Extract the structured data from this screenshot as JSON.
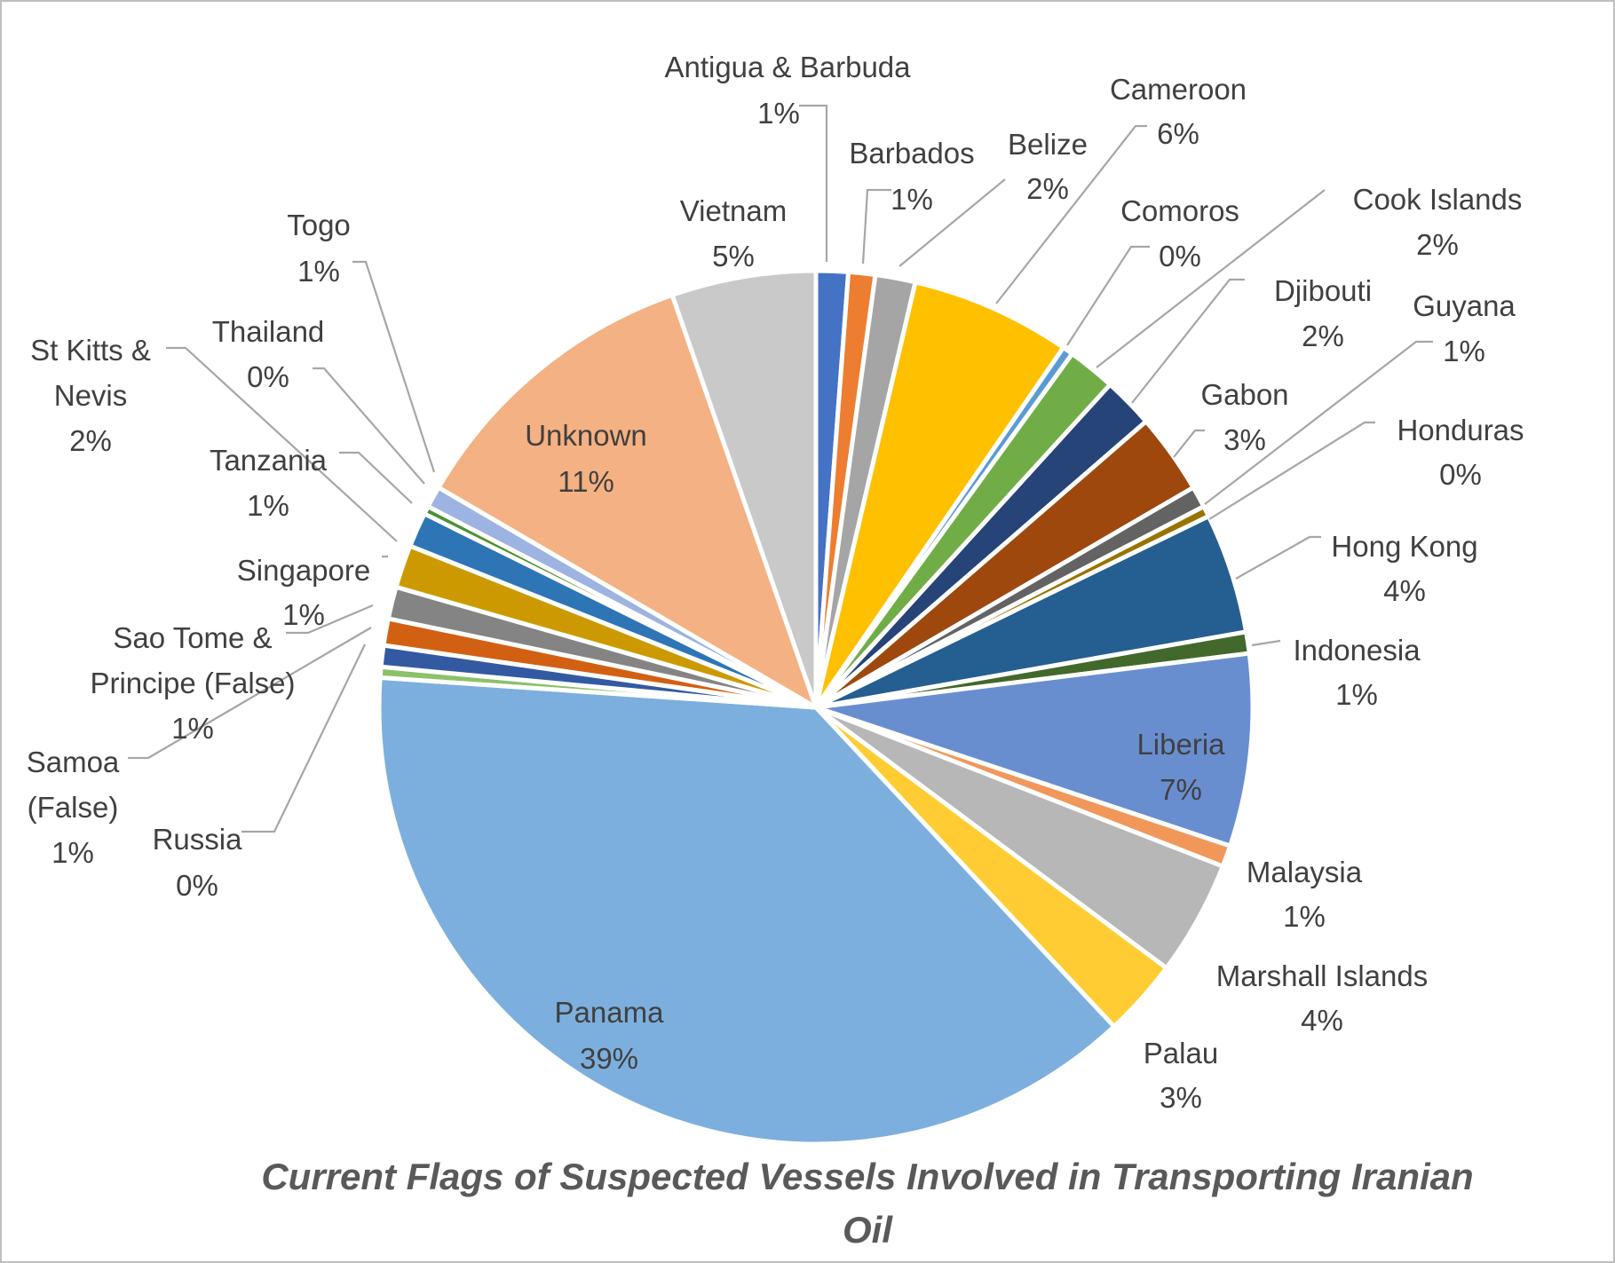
{
  "chart_data": {
    "type": "pie",
    "title": "Current Flags of  Suspected Vessels Involved in Transporting Iranian Oil",
    "slices": [
      {
        "name": "Antigua & Barbuda",
        "label": "1%",
        "value": 1.2,
        "color": "#4472C4"
      },
      {
        "name": "Barbados",
        "label": "1%",
        "value": 1.0,
        "color": "#ED7D31"
      },
      {
        "name": "Belize",
        "label": "2%",
        "value": 1.5,
        "color": "#A5A5A5"
      },
      {
        "name": "Cameroon",
        "label": "6%",
        "value": 6.0,
        "color": "#FFC000"
      },
      {
        "name": "Comoros",
        "label": "0%",
        "value": 0.4,
        "color": "#5B9BD5"
      },
      {
        "name": "Cook Islands",
        "label": "2%",
        "value": 1.8,
        "color": "#70AD47"
      },
      {
        "name": "Djibouti",
        "label": "2%",
        "value": 1.9,
        "color": "#264478"
      },
      {
        "name": "Gabon",
        "label": "3%",
        "value": 3.0,
        "color": "#9E480E"
      },
      {
        "name": "Guyana",
        "label": "1%",
        "value": 0.8,
        "color": "#636363"
      },
      {
        "name": "Honduras",
        "label": "0%",
        "value": 0.4,
        "color": "#997300"
      },
      {
        "name": "Hong Kong",
        "label": "4%",
        "value": 4.5,
        "color": "#255E91"
      },
      {
        "name": "Indonesia",
        "label": "1%",
        "value": 0.8,
        "color": "#43682B"
      },
      {
        "name": "Liberia",
        "label": "7%",
        "value": 7.2,
        "color": "#698ED0"
      },
      {
        "name": "Malaysia",
        "label": "1%",
        "value": 0.8,
        "color": "#F1975A"
      },
      {
        "name": "Marshall Islands",
        "label": "4%",
        "value": 4.3,
        "color": "#B7B7B7"
      },
      {
        "name": "Palau",
        "label": "3%",
        "value": 2.9,
        "color": "#FFCD33"
      },
      {
        "name": "Panama",
        "label": "39%",
        "value": 38.5,
        "color": "#7CAFDD"
      },
      {
        "name": "Russia",
        "label": "0%",
        "value": 0.4,
        "color": "#8BC168"
      },
      {
        "name": "Samoa (False)",
        "label": "1%",
        "value": 0.8,
        "color": "#335AA1"
      },
      {
        "name": "Sao Tome & Principe (False)",
        "label": "1%",
        "value": 1.0,
        "color": "#D26012"
      },
      {
        "name": "Singapore",
        "label": "1%",
        "value": 1.2,
        "color": "#848484"
      },
      {
        "name": "St Kitts & Nevis",
        "label": "2%",
        "value": 1.6,
        "color": "#CC9A00"
      },
      {
        "name": "Tanzania",
        "label": "1%",
        "value": 1.3,
        "color": "#2E75B6"
      },
      {
        "name": "Thailand",
        "label": "0%",
        "value": 0.3,
        "color": "#4E8F33"
      },
      {
        "name": "Togo",
        "label": "1%",
        "value": 0.8,
        "color": "#9DB3E2"
      },
      {
        "name": "Unknown",
        "label": "11%",
        "value": 11.4,
        "color": "#F4B183"
      },
      {
        "name": "Vietnam",
        "label": "5%",
        "value": 5.4,
        "color": "#C9C9C9"
      }
    ]
  }
}
